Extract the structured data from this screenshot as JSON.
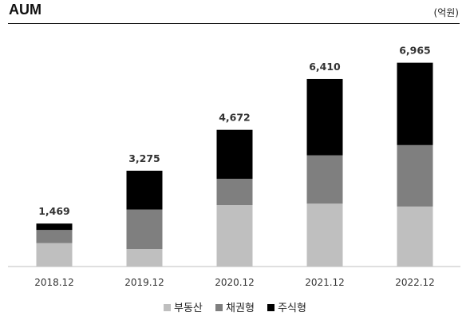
{
  "header": {
    "title": "AUM",
    "unit": "(억원)"
  },
  "chart_data": {
    "type": "bar",
    "stacked": true,
    "categories": [
      "2018.12",
      "2019.12",
      "2020.12",
      "2021.12",
      "2022.12"
    ],
    "series": [
      {
        "name": "부동산",
        "color": "#bfbfbf",
        "values": [
          800,
          600,
          2100,
          2150,
          2050
        ]
      },
      {
        "name": "채권형",
        "color": "#7f7f7f",
        "values": [
          450,
          1350,
          900,
          1650,
          2100
        ]
      },
      {
        "name": "주식형",
        "color": "#000000",
        "values": [
          219,
          1325,
          1672,
          2610,
          2815
        ]
      }
    ],
    "totals": [
      "1,469",
      "3,275",
      "4,672",
      "6,410",
      "6,965"
    ],
    "ylim": [
      0,
      7500
    ],
    "grid": false,
    "legend_position": "bottom"
  }
}
